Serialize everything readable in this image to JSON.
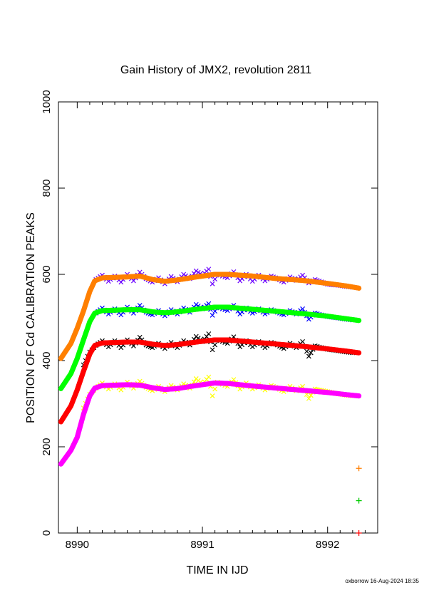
{
  "chart_data": {
    "type": "line",
    "title": "Gain History of JMX2, revolution 2811",
    "xlabel": "TIME IN IJD",
    "ylabel": "POSITION OF Cd CALIBRATION PEAKS",
    "xlim": [
      8989.85,
      8992.4
    ],
    "ylim": [
      0,
      1000
    ],
    "x_ticks": [
      "8990",
      "8991",
      "8992"
    ],
    "y_ticks": [
      "0",
      "200",
      "400",
      "600",
      "800",
      "1000"
    ],
    "grid": false,
    "footer": "oxborrow 16-Aug-2024 18:35",
    "series": [
      {
        "color": "#ff7f00",
        "role": "fit",
        "points": [
          [
            8989.87,
            405
          ],
          [
            8989.95,
            440
          ],
          [
            8990.0,
            475
          ],
          [
            8990.05,
            515
          ],
          [
            8990.1,
            560
          ],
          [
            8990.14,
            585
          ],
          [
            8990.2,
            592
          ],
          [
            8990.4,
            594
          ],
          [
            8990.5,
            596
          ],
          [
            8990.6,
            588
          ],
          [
            8990.7,
            584
          ],
          [
            8990.8,
            587
          ],
          [
            8990.95,
            594
          ],
          [
            8991.1,
            600
          ],
          [
            8991.2,
            600
          ],
          [
            8991.4,
            596
          ],
          [
            8991.6,
            590
          ],
          [
            8991.8,
            586
          ],
          [
            8992.0,
            579
          ],
          [
            8992.15,
            573
          ],
          [
            8992.25,
            568
          ]
        ]
      },
      {
        "color": "#6a00ff",
        "role": "data",
        "points": [
          [
            8990.15,
            588
          ],
          [
            8990.2,
            598
          ],
          [
            8990.25,
            584
          ],
          [
            8990.3,
            596
          ],
          [
            8990.35,
            582
          ],
          [
            8990.4,
            600
          ],
          [
            8990.45,
            585
          ],
          [
            8990.5,
            605
          ],
          [
            8990.55,
            590
          ],
          [
            8990.6,
            582
          ],
          [
            8990.65,
            592
          ],
          [
            8990.7,
            578
          ],
          [
            8990.75,
            595
          ],
          [
            8990.8,
            583
          ],
          [
            8990.85,
            600
          ],
          [
            8990.9,
            590
          ],
          [
            8990.95,
            608
          ],
          [
            8991.0,
            598
          ],
          [
            8991.05,
            612
          ],
          [
            8991.08,
            578
          ],
          [
            8991.12,
            600
          ],
          [
            8991.2,
            592
          ],
          [
            8991.25,
            606
          ],
          [
            8991.3,
            585
          ],
          [
            8991.35,
            600
          ],
          [
            8991.4,
            584
          ],
          [
            8991.45,
            598
          ],
          [
            8991.5,
            585
          ],
          [
            8991.55,
            596
          ],
          [
            8991.6,
            590
          ],
          [
            8991.65,
            582
          ],
          [
            8991.7,
            594
          ],
          [
            8991.75,
            586
          ],
          [
            8991.8,
            598
          ],
          [
            8991.85,
            580
          ],
          [
            8991.9,
            588
          ],
          [
            8992.0,
            577
          ],
          [
            8992.1,
            574
          ],
          [
            8992.2,
            570
          ]
        ]
      },
      {
        "color": "#00ff00",
        "role": "fit",
        "points": [
          [
            8989.87,
            335
          ],
          [
            8989.95,
            370
          ],
          [
            8990.0,
            405
          ],
          [
            8990.05,
            448
          ],
          [
            8990.1,
            490
          ],
          [
            8990.14,
            510
          ],
          [
            8990.2,
            516
          ],
          [
            8990.4,
            518
          ],
          [
            8990.5,
            518
          ],
          [
            8990.6,
            513
          ],
          [
            8990.7,
            511
          ],
          [
            8990.8,
            513
          ],
          [
            8990.95,
            519
          ],
          [
            8991.1,
            524
          ],
          [
            8991.2,
            524
          ],
          [
            8991.4,
            519
          ],
          [
            8991.6,
            514
          ],
          [
            8991.8,
            509
          ],
          [
            8992.0,
            503
          ],
          [
            8992.15,
            497
          ],
          [
            8992.25,
            493
          ]
        ]
      },
      {
        "color": "#0000ff",
        "role": "data",
        "points": [
          [
            8990.15,
            510
          ],
          [
            8990.2,
            522
          ],
          [
            8990.25,
            508
          ],
          [
            8990.3,
            520
          ],
          [
            8990.35,
            506
          ],
          [
            8990.4,
            524
          ],
          [
            8990.45,
            510
          ],
          [
            8990.5,
            528
          ],
          [
            8990.55,
            512
          ],
          [
            8990.6,
            506
          ],
          [
            8990.65,
            516
          ],
          [
            8990.7,
            504
          ],
          [
            8990.75,
            518
          ],
          [
            8990.8,
            508
          ],
          [
            8990.85,
            522
          ],
          [
            8990.9,
            512
          ],
          [
            8990.95,
            530
          ],
          [
            8991.0,
            520
          ],
          [
            8991.05,
            532
          ],
          [
            8991.08,
            505
          ],
          [
            8991.12,
            524
          ],
          [
            8991.2,
            516
          ],
          [
            8991.25,
            528
          ],
          [
            8991.3,
            508
          ],
          [
            8991.35,
            522
          ],
          [
            8991.4,
            510
          ],
          [
            8991.45,
            520
          ],
          [
            8991.5,
            508
          ],
          [
            8991.55,
            518
          ],
          [
            8991.6,
            512
          ],
          [
            8991.65,
            506
          ],
          [
            8991.7,
            516
          ],
          [
            8991.75,
            508
          ],
          [
            8991.8,
            520
          ],
          [
            8991.85,
            496
          ],
          [
            8991.9,
            510
          ],
          [
            8992.0,
            502
          ],
          [
            8992.1,
            498
          ],
          [
            8992.2,
            494
          ]
        ]
      },
      {
        "color": "#ff0000",
        "role": "fit",
        "points": [
          [
            8989.87,
            258
          ],
          [
            8989.95,
            295
          ],
          [
            8990.0,
            332
          ],
          [
            8990.05,
            375
          ],
          [
            8990.1,
            415
          ],
          [
            8990.14,
            435
          ],
          [
            8990.2,
            441
          ],
          [
            8990.4,
            443
          ],
          [
            8990.5,
            443
          ],
          [
            8990.6,
            438
          ],
          [
            8990.7,
            435
          ],
          [
            8990.8,
            437
          ],
          [
            8990.95,
            443
          ],
          [
            8991.1,
            448
          ],
          [
            8991.2,
            448
          ],
          [
            8991.4,
            443
          ],
          [
            8991.6,
            438
          ],
          [
            8991.8,
            433
          ],
          [
            8992.0,
            427
          ],
          [
            8992.15,
            422
          ],
          [
            8992.25,
            418
          ]
        ]
      },
      {
        "color": "#000000",
        "role": "data",
        "points": [
          [
            8990.05,
            390
          ],
          [
            8990.1,
            420
          ],
          [
            8990.15,
            435
          ],
          [
            8990.2,
            446
          ],
          [
            8990.25,
            432
          ],
          [
            8990.3,
            446
          ],
          [
            8990.35,
            430
          ],
          [
            8990.4,
            448
          ],
          [
            8990.45,
            434
          ],
          [
            8990.5,
            454
          ],
          [
            8990.55,
            436
          ],
          [
            8990.6,
            430
          ],
          [
            8990.65,
            440
          ],
          [
            8990.7,
            428
          ],
          [
            8990.75,
            442
          ],
          [
            8990.8,
            430
          ],
          [
            8990.85,
            446
          ],
          [
            8990.9,
            436
          ],
          [
            8990.95,
            456
          ],
          [
            8991.0,
            444
          ],
          [
            8991.05,
            462
          ],
          [
            8991.08,
            425
          ],
          [
            8991.12,
            448
          ],
          [
            8991.2,
            440
          ],
          [
            8991.25,
            455
          ],
          [
            8991.3,
            432
          ],
          [
            8991.35,
            446
          ],
          [
            8991.4,
            432
          ],
          [
            8991.45,
            444
          ],
          [
            8991.5,
            430
          ],
          [
            8991.55,
            442
          ],
          [
            8991.6,
            436
          ],
          [
            8991.65,
            428
          ],
          [
            8991.7,
            440
          ],
          [
            8991.75,
            430
          ],
          [
            8991.8,
            444
          ],
          [
            8991.85,
            410
          ],
          [
            8991.9,
            434
          ],
          [
            8992.0,
            426
          ],
          [
            8992.1,
            422
          ],
          [
            8992.2,
            418
          ]
        ]
      },
      {
        "color": "#ff00ff",
        "role": "fit",
        "points": [
          [
            8989.87,
            160
          ],
          [
            8989.95,
            192
          ],
          [
            8990.0,
            222
          ],
          [
            8990.05,
            275
          ],
          [
            8990.1,
            318
          ],
          [
            8990.14,
            336
          ],
          [
            8990.2,
            342
          ],
          [
            8990.4,
            344
          ],
          [
            8990.5,
            343
          ],
          [
            8990.6,
            337
          ],
          [
            8990.7,
            333
          ],
          [
            8990.8,
            335
          ],
          [
            8990.95,
            342
          ],
          [
            8991.1,
            348
          ],
          [
            8991.2,
            347
          ],
          [
            8991.4,
            341
          ],
          [
            8991.6,
            336
          ],
          [
            8991.8,
            331
          ],
          [
            8992.0,
            326
          ],
          [
            8992.15,
            321
          ],
          [
            8992.25,
            318
          ]
        ]
      },
      {
        "color": "#ffff00",
        "role": "data",
        "points": [
          [
            8990.05,
            290
          ],
          [
            8990.1,
            322
          ],
          [
            8990.15,
            336
          ],
          [
            8990.2,
            348
          ],
          [
            8990.25,
            334
          ],
          [
            8990.3,
            346
          ],
          [
            8990.35,
            332
          ],
          [
            8990.4,
            350
          ],
          [
            8990.45,
            336
          ],
          [
            8990.5,
            352
          ],
          [
            8990.55,
            338
          ],
          [
            8990.6,
            330
          ],
          [
            8990.65,
            340
          ],
          [
            8990.7,
            328
          ],
          [
            8990.75,
            342
          ],
          [
            8990.8,
            332
          ],
          [
            8990.85,
            346
          ],
          [
            8990.9,
            336
          ],
          [
            8990.95,
            358
          ],
          [
            8991.0,
            345
          ],
          [
            8991.05,
            362
          ],
          [
            8991.08,
            318
          ],
          [
            8991.12,
            350
          ],
          [
            8991.2,
            340
          ],
          [
            8991.25,
            356
          ],
          [
            8991.3,
            334
          ],
          [
            8991.35,
            348
          ],
          [
            8991.4,
            334
          ],
          [
            8991.45,
            344
          ],
          [
            8991.5,
            332
          ],
          [
            8991.55,
            342
          ],
          [
            8991.6,
            336
          ],
          [
            8991.65,
            328
          ],
          [
            8991.7,
            340
          ],
          [
            8991.75,
            330
          ],
          [
            8991.8,
            340
          ],
          [
            8991.85,
            312
          ],
          [
            8991.9,
            334
          ],
          [
            8992.0,
            328
          ],
          [
            8992.1,
            322
          ],
          [
            8992.2,
            318
          ]
        ]
      }
    ],
    "isolated_markers": [
      {
        "x": 8992.25,
        "y": 150,
        "color": "#ff7f00"
      },
      {
        "x": 8992.25,
        "y": 75,
        "color": "#00cc00"
      },
      {
        "x": 8992.25,
        "y": 0,
        "color": "#ff0000"
      }
    ]
  }
}
